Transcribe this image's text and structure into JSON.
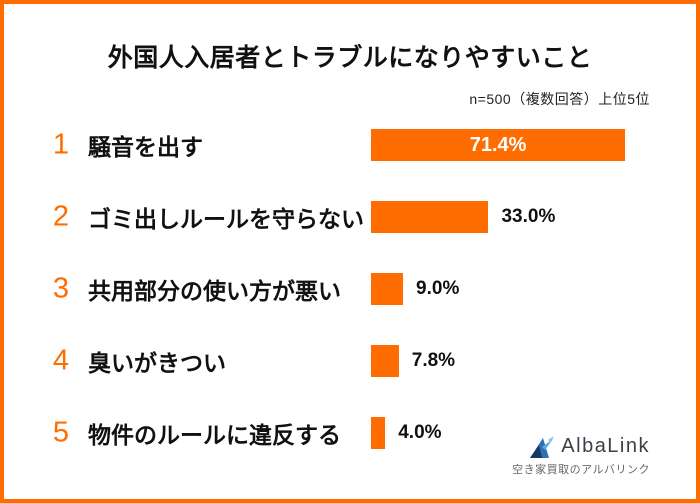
{
  "theme": {
    "accent": "#FF6C00",
    "text": "#111111",
    "logo_text": "#3E3E48",
    "logo_sub": "#666666"
  },
  "title": "外国人入居者とトラブルになりやすいこと",
  "note": "n=500（複数回答）上位5位",
  "rows": [
    {
      "rank": "1",
      "label": "騒音を出す",
      "value": 71.4,
      "pct_label": "71.4%"
    },
    {
      "rank": "2",
      "label": "ゴミ出しルールを守らない",
      "value": 33.0,
      "pct_label": "33.0%"
    },
    {
      "rank": "3",
      "label": "共用部分の使い方が悪い",
      "value": 9.0,
      "pct_label": "9.0%"
    },
    {
      "rank": "4",
      "label": "臭いがきつい",
      "value": 7.8,
      "pct_label": "7.8%"
    },
    {
      "rank": "5",
      "label": "物件のルールに違反する",
      "value": 4.0,
      "pct_label": "4.0%"
    }
  ],
  "logo": {
    "wordmark": "AlbaLink",
    "tagline": "空き家買取のアルバリンク"
  },
  "chart_data": {
    "type": "bar",
    "orientation": "horizontal",
    "title": "外国人入居者とトラブルになりやすいこと",
    "note": "n=500（複数回答）上位5位",
    "categories": [
      "騒音を出す",
      "ゴミ出しルールを守らない",
      "共用部分の使い方が悪い",
      "臭いがきつい",
      "物件のルールに違反する"
    ],
    "values": [
      71.4,
      33.0,
      9.0,
      7.8,
      4.0
    ],
    "value_labels": [
      "71.4%",
      "33.0%",
      "9.0%",
      "7.8%",
      "4.0%"
    ],
    "ranks": [
      1,
      2,
      3,
      4,
      5
    ],
    "bar_color": "#FF6C00",
    "xlim": [
      0,
      80
    ],
    "grid": false,
    "legend": false,
    "value_label_position": [
      "inside-center",
      "right",
      "right",
      "right",
      "right"
    ]
  }
}
